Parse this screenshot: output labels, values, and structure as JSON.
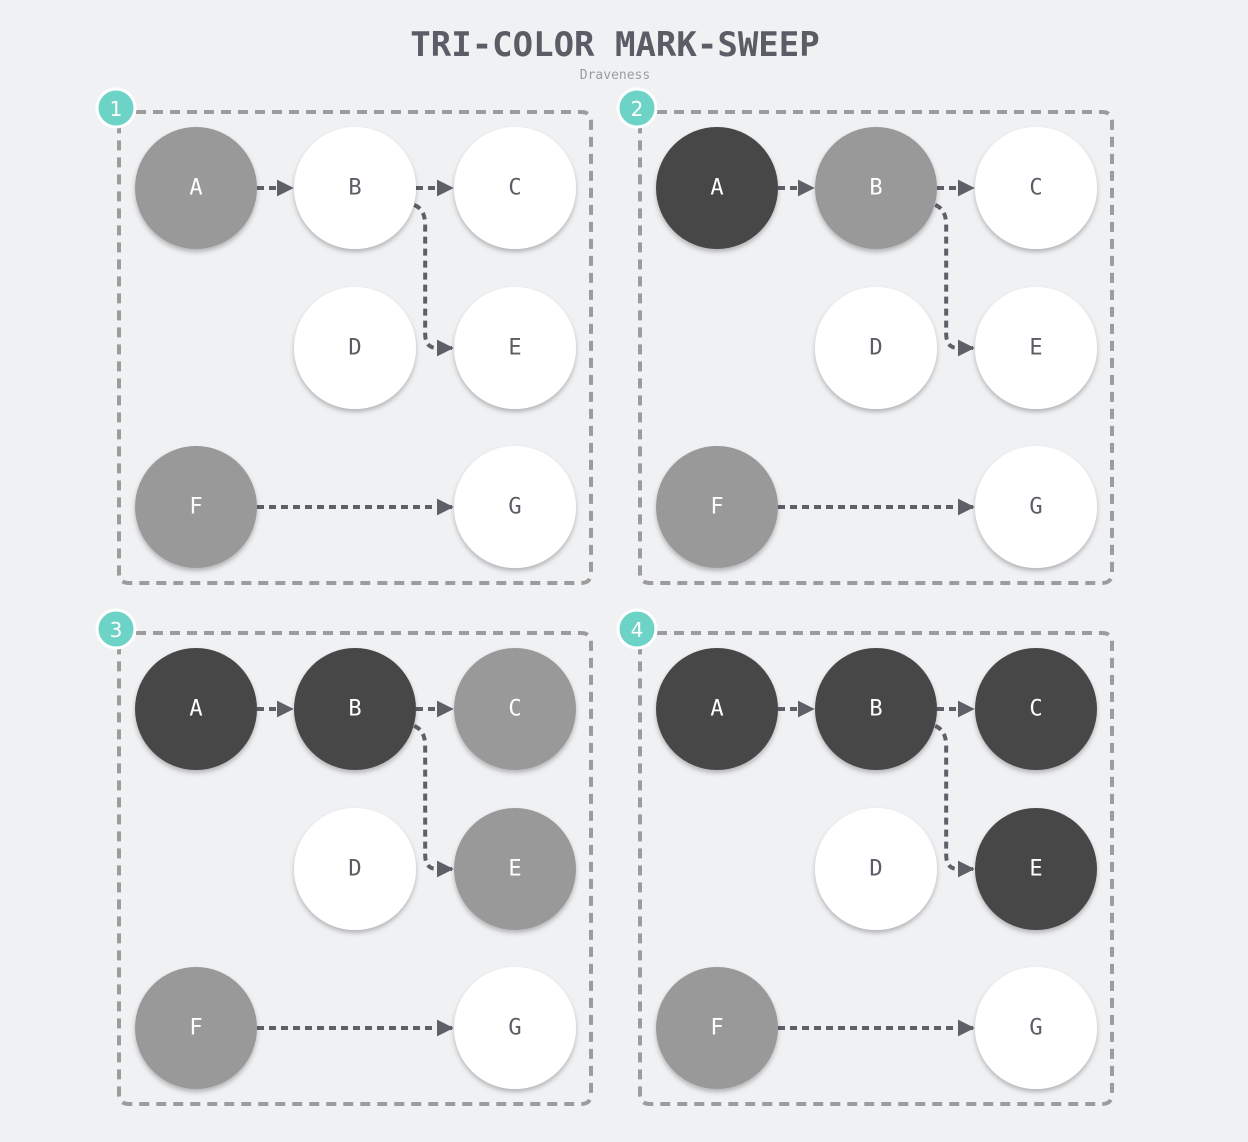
{
  "title": "TRI-COLOR MARK-SWEEP",
  "subtitle": "Draveness",
  "colors": {
    "background": "#f0f1f3",
    "white": "#ffffff",
    "grey": "#999999",
    "black": "#474747",
    "badge": "#6dd3c6",
    "edge": "#5f5f68",
    "frame": "#9c9c9c",
    "label_dark": "#5b5d66",
    "label_light": "#ffffff"
  },
  "edges": [
    {
      "from": "A",
      "to": "B"
    },
    {
      "from": "B",
      "to": "C"
    },
    {
      "from": "B",
      "to": "E"
    },
    {
      "from": "F",
      "to": "G"
    }
  ],
  "panels": [
    {
      "step": "1",
      "nodes": [
        {
          "id": "A",
          "label": "A",
          "state": "grey"
        },
        {
          "id": "B",
          "label": "B",
          "state": "white"
        },
        {
          "id": "C",
          "label": "C",
          "state": "white"
        },
        {
          "id": "D",
          "label": "D",
          "state": "white"
        },
        {
          "id": "E",
          "label": "E",
          "state": "white"
        },
        {
          "id": "F",
          "label": "F",
          "state": "grey"
        },
        {
          "id": "G",
          "label": "G",
          "state": "white"
        }
      ]
    },
    {
      "step": "2",
      "nodes": [
        {
          "id": "A",
          "label": "A",
          "state": "black"
        },
        {
          "id": "B",
          "label": "B",
          "state": "grey"
        },
        {
          "id": "C",
          "label": "C",
          "state": "white"
        },
        {
          "id": "D",
          "label": "D",
          "state": "white"
        },
        {
          "id": "E",
          "label": "E",
          "state": "white"
        },
        {
          "id": "F",
          "label": "F",
          "state": "grey"
        },
        {
          "id": "G",
          "label": "G",
          "state": "white"
        }
      ]
    },
    {
      "step": "3",
      "nodes": [
        {
          "id": "A",
          "label": "A",
          "state": "black"
        },
        {
          "id": "B",
          "label": "B",
          "state": "black"
        },
        {
          "id": "C",
          "label": "C",
          "state": "grey"
        },
        {
          "id": "D",
          "label": "D",
          "state": "white"
        },
        {
          "id": "E",
          "label": "E",
          "state": "grey"
        },
        {
          "id": "F",
          "label": "F",
          "state": "grey"
        },
        {
          "id": "G",
          "label": "G",
          "state": "white"
        }
      ]
    },
    {
      "step": "4",
      "nodes": [
        {
          "id": "A",
          "label": "A",
          "state": "black"
        },
        {
          "id": "B",
          "label": "B",
          "state": "black"
        },
        {
          "id": "C",
          "label": "C",
          "state": "black"
        },
        {
          "id": "D",
          "label": "D",
          "state": "white"
        },
        {
          "id": "E",
          "label": "E",
          "state": "black"
        },
        {
          "id": "F",
          "label": "F",
          "state": "grey"
        },
        {
          "id": "G",
          "label": "G",
          "state": "white"
        }
      ]
    }
  ]
}
